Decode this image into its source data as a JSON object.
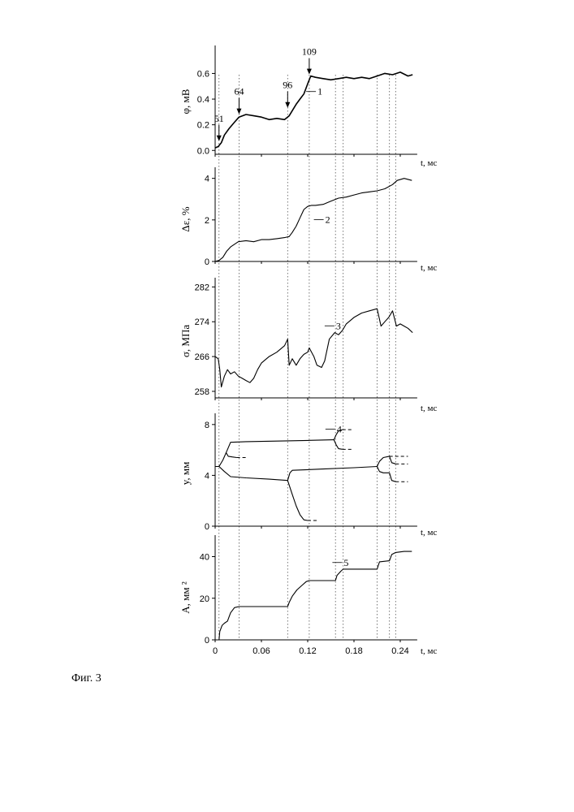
{
  "caption": "Фиг. 3",
  "vlines_t": [
    0.005,
    0.031,
    0.094,
    0.122,
    0.156,
    0.166,
    0.21,
    0.226,
    0.234
  ],
  "chart_data": [
    {
      "type": "line",
      "ylabel": "φ, мВ",
      "xlabel": "t, мс",
      "ylim": [
        -0.03,
        0.78
      ],
      "yticks": [
        0.0,
        0.2,
        0.4,
        0.6
      ],
      "ytick_labels": [
        "0.0",
        "0.2",
        "0.4",
        "0.6"
      ],
      "series": [
        {
          "name": "1",
          "x": [
            0,
            0.004,
            0.008,
            0.012,
            0.018,
            0.025,
            0.031,
            0.04,
            0.05,
            0.06,
            0.07,
            0.08,
            0.09,
            0.096,
            0.1,
            0.105,
            0.11,
            0.115,
            0.12,
            0.124,
            0.13,
            0.14,
            0.15,
            0.16,
            0.17,
            0.18,
            0.19,
            0.2,
            0.21,
            0.22,
            0.23,
            0.24,
            0.25,
            0.256
          ],
          "y": [
            0.02,
            0.03,
            0.06,
            0.12,
            0.17,
            0.22,
            0.26,
            0.28,
            0.27,
            0.26,
            0.24,
            0.25,
            0.24,
            0.27,
            0.31,
            0.36,
            0.4,
            0.44,
            0.52,
            0.58,
            0.57,
            0.56,
            0.55,
            0.56,
            0.57,
            0.56,
            0.57,
            0.56,
            0.58,
            0.6,
            0.59,
            0.61,
            0.58,
            0.59
          ]
        }
      ],
      "annotations": [
        {
          "text": "51",
          "t": 0.005,
          "y": 0.06
        },
        {
          "text": "64",
          "t": 0.031,
          "y": 0.27
        },
        {
          "text": "96",
          "t": 0.094,
          "y": 0.32
        },
        {
          "text": "109",
          "t": 0.122,
          "y": 0.58
        }
      ],
      "curve_label": {
        "text": "1",
        "t": 0.118,
        "y": 0.44
      }
    },
    {
      "type": "line",
      "ylabel": "Δε, %",
      "xlabel": "t, мс",
      "ylim": [
        0,
        4.3
      ],
      "yticks": [
        0,
        2,
        4
      ],
      "ytick_labels": [
        "0",
        "2",
        "4"
      ],
      "series": [
        {
          "name": "2",
          "x": [
            0,
            0.005,
            0.01,
            0.015,
            0.02,
            0.03,
            0.04,
            0.05,
            0.06,
            0.07,
            0.08,
            0.09,
            0.096,
            0.1,
            0.105,
            0.11,
            0.115,
            0.12,
            0.125,
            0.13,
            0.14,
            0.15,
            0.16,
            0.17,
            0.18,
            0.19,
            0.2,
            0.21,
            0.22,
            0.23,
            0.236,
            0.245,
            0.255
          ],
          "y": [
            0,
            0.05,
            0.2,
            0.5,
            0.7,
            0.95,
            1.0,
            0.95,
            1.05,
            1.05,
            1.1,
            1.15,
            1.2,
            1.4,
            1.7,
            2.1,
            2.5,
            2.65,
            2.7,
            2.7,
            2.75,
            2.9,
            3.05,
            3.1,
            3.2,
            3.3,
            3.35,
            3.4,
            3.5,
            3.7,
            3.9,
            4.0,
            3.9
          ]
        }
      ],
      "curve_label": {
        "text": "2",
        "t": 0.128,
        "y": 1.9
      }
    },
    {
      "type": "line",
      "ylabel": "σ, МПа",
      "xlabel": "t, мс",
      "ylim": [
        256.5,
        283
      ],
      "yticks": [
        258,
        266,
        274,
        282
      ],
      "ytick_labels": [
        "258",
        "266",
        "274",
        "282"
      ],
      "series": [
        {
          "name": "3",
          "x": [
            0,
            0.004,
            0.006,
            0.008,
            0.012,
            0.016,
            0.02,
            0.025,
            0.03,
            0.035,
            0.04,
            0.045,
            0.05,
            0.055,
            0.06,
            0.07,
            0.08,
            0.09,
            0.094,
            0.096,
            0.1,
            0.105,
            0.11,
            0.115,
            0.12,
            0.122,
            0.128,
            0.132,
            0.138,
            0.142,
            0.148,
            0.155,
            0.16,
            0.165,
            0.17,
            0.18,
            0.19,
            0.2,
            0.21,
            0.215,
            0.22,
            0.225,
            0.23,
            0.235,
            0.24,
            0.245,
            0.25,
            0.256
          ],
          "y": [
            266.0,
            265.5,
            263.0,
            259.0,
            261.5,
            263.0,
            262.0,
            262.5,
            261.5,
            261.0,
            260.5,
            260.0,
            261.0,
            263.0,
            264.5,
            266.0,
            267.0,
            268.5,
            270.0,
            264.0,
            265.5,
            264.0,
            265.5,
            266.5,
            267.0,
            268.0,
            266.0,
            264.0,
            263.5,
            265.0,
            270.0,
            271.5,
            271.0,
            272.0,
            273.5,
            275.0,
            276.0,
            276.5,
            277.0,
            273.0,
            274.0,
            275.0,
            276.5,
            273.0,
            273.5,
            273.0,
            272.5,
            271.5
          ]
        }
      ],
      "curve_label": {
        "text": "3",
        "t": 0.142,
        "y": 272.5
      }
    },
    {
      "type": "line",
      "ylabel": "y, мм",
      "xlabel": "t, мс",
      "ylim": [
        0,
        8.5
      ],
      "yticks": [
        0,
        4,
        8
      ],
      "ytick_labels": [
        "0",
        "4",
        "8"
      ],
      "series": [
        {
          "x": [
            0,
            0.005,
            0.01,
            0.015,
            0.02,
            0.04,
            0.08,
            0.12,
            0.154
          ],
          "y": [
            4.7,
            4.7,
            5.2,
            5.9,
            6.6,
            6.65,
            6.7,
            6.75,
            6.8
          ]
        },
        {
          "x": [
            0.154,
            0.157,
            0.16,
            0.165
          ],
          "y": [
            6.8,
            7.2,
            7.5,
            7.6
          ]
        },
        {
          "x": [
            0.154,
            0.157,
            0.16,
            0.165
          ],
          "y": [
            6.8,
            6.4,
            6.1,
            6.05
          ]
        },
        {
          "x": [
            0.014,
            0.017,
            0.022,
            0.028
          ],
          "y": [
            5.8,
            5.5,
            5.45,
            5.4
          ]
        },
        {
          "x": [
            0.005,
            0.012,
            0.02,
            0.04,
            0.07,
            0.094
          ],
          "y": [
            4.7,
            4.3,
            3.9,
            3.8,
            3.7,
            3.6
          ]
        },
        {
          "x": [
            0.094,
            0.1,
            0.105,
            0.11,
            0.115,
            0.12
          ],
          "y": [
            3.6,
            2.5,
            1.6,
            0.9,
            0.5,
            0.45
          ]
        },
        {
          "x": [
            0.094,
            0.097,
            0.1,
            0.14,
            0.18,
            0.21
          ],
          "y": [
            3.6,
            4.2,
            4.4,
            4.5,
            4.6,
            4.7
          ]
        },
        {
          "x": [
            0.21,
            0.213,
            0.218,
            0.226
          ],
          "y": [
            4.7,
            5.1,
            5.4,
            5.5
          ]
        },
        {
          "x": [
            0.21,
            0.213,
            0.218,
            0.226
          ],
          "y": [
            4.7,
            4.3,
            4.2,
            4.2
          ]
        },
        {
          "x": [
            0.226,
            0.229,
            0.234
          ],
          "y": [
            5.5,
            5.0,
            4.9
          ]
        },
        {
          "x": [
            0.226,
            0.229,
            0.234
          ],
          "y": [
            4.2,
            3.6,
            3.5
          ]
        }
      ],
      "dashes": [
        {
          "t0": 0.028,
          "t1": 0.042,
          "y": 5.4
        },
        {
          "t0": 0.12,
          "t1": 0.134,
          "y": 0.45
        },
        {
          "t0": 0.165,
          "t1": 0.178,
          "y": 7.6
        },
        {
          "t0": 0.165,
          "t1": 0.178,
          "y": 6.05
        },
        {
          "t0": 0.226,
          "t1": 0.25,
          "y": 5.5
        },
        {
          "t0": 0.234,
          "t1": 0.25,
          "y": 4.9
        },
        {
          "t0": 0.234,
          "t1": 0.25,
          "y": 3.5
        }
      ],
      "curve_label": {
        "text": "4",
        "t": 0.143,
        "y": 7.45
      }
    },
    {
      "type": "line",
      "ylabel": "A, мм ²",
      "xlabel": "t, мс",
      "ylim": [
        0,
        48
      ],
      "yticks": [
        0,
        20,
        40
      ],
      "ytick_labels": [
        "0",
        "20",
        "40"
      ],
      "xticks": [
        0,
        0.06,
        0.12,
        0.18,
        0.24
      ],
      "xtick_labels": [
        "0",
        "0.06",
        "0.12",
        "0.18",
        "0.24"
      ],
      "series": [
        {
          "name": "5",
          "x": [
            0.005,
            0.006,
            0.009,
            0.012,
            0.016,
            0.02,
            0.025,
            0.031,
            0.05,
            0.07,
            0.094,
            0.096,
            0.1,
            0.106,
            0.112,
            0.118,
            0.122,
            0.13,
            0.14,
            0.156,
            0.158,
            0.163,
            0.166,
            0.18,
            0.2,
            0.21,
            0.213,
            0.226,
            0.229,
            0.234,
            0.245,
            0.255
          ],
          "y": [
            0,
            4,
            7,
            8,
            9,
            13,
            15.5,
            16,
            16,
            16,
            16,
            18,
            21,
            24,
            26,
            28,
            28.5,
            28.5,
            28.5,
            28.5,
            31,
            33,
            34,
            34,
            34,
            34,
            37.5,
            38,
            41,
            42,
            42.5,
            42.5
          ]
        }
      ],
      "curve_label": {
        "text": "5",
        "t": 0.152,
        "y": 36
      }
    }
  ]
}
